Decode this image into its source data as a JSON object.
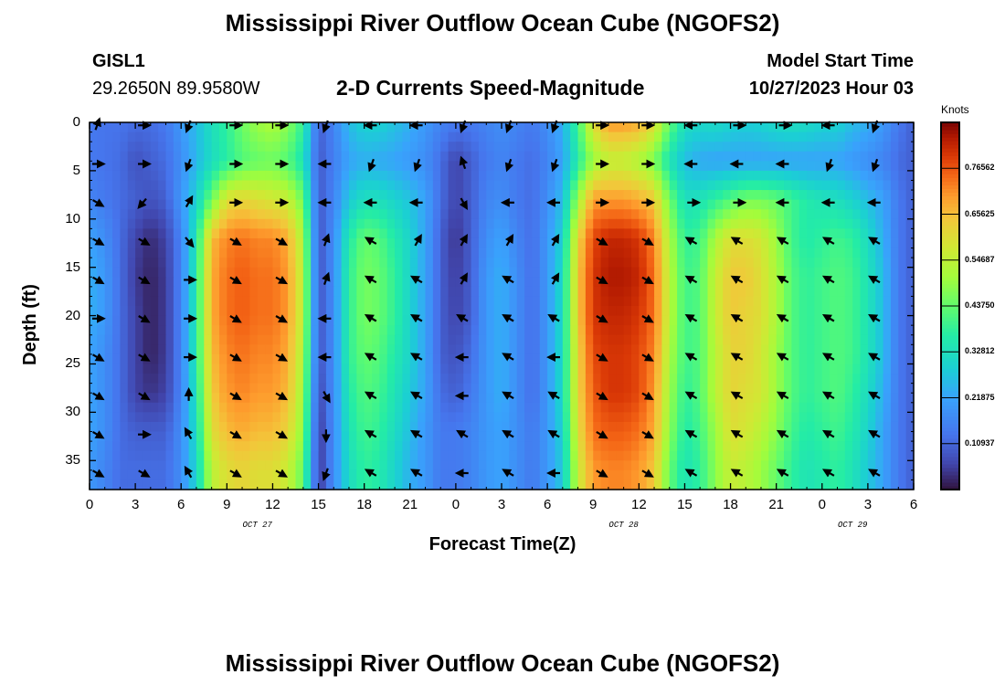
{
  "page": {
    "title_top": "Mississippi River Outflow Ocean Cube (NGOFS2)",
    "title_bottom": "Mississippi River Outflow Ocean Cube (NGOFS2)"
  },
  "header": {
    "station_id": "GISL1",
    "coordinates": "29.2650N  89.9580W",
    "plot_title": "2-D Currents Speed-Magnitude",
    "model_start_label": "Model Start Time",
    "model_start_value": "10/27/2023 Hour 03"
  },
  "chart_data": {
    "type": "heatmap",
    "title": "2-D Currents Speed-Magnitude",
    "xlabel": "Forecast Time(Z)",
    "ylabel": "Depth (ft)",
    "ylim": [
      0,
      38
    ],
    "y_ticks": [
      "0",
      "5",
      "10",
      "15",
      "20",
      "25",
      "30",
      "35"
    ],
    "y_tick_values": [
      0,
      5,
      10,
      15,
      20,
      25,
      30,
      35
    ],
    "x_ticks": [
      "0",
      "3",
      "6",
      "9",
      "12",
      "15",
      "18",
      "21",
      "0",
      "3",
      "6",
      "9",
      "12",
      "15",
      "18",
      "21",
      "0",
      "3",
      "6"
    ],
    "x_hours": [
      0,
      3,
      6,
      9,
      12,
      15,
      18,
      21,
      24,
      27,
      30,
      33,
      36,
      39,
      42,
      45,
      48,
      51,
      54
    ],
    "xlim": [
      0,
      54
    ],
    "date_labels": [
      {
        "label": "OCT 27",
        "hour": 11
      },
      {
        "label": "OCT 28",
        "hour": 35
      },
      {
        "label": "OCT 29",
        "hour": 50
      }
    ],
    "colorbar": {
      "units": "Knots",
      "ticks": [
        "0.10937",
        "0.21875",
        "0.32812",
        "0.43750",
        "0.54687",
        "0.65625",
        "0.76562"
      ],
      "tick_values": [
        0.10937,
        0.21875,
        0.32812,
        0.4375,
        0.54687,
        0.65625,
        0.76562
      ],
      "range": [
        0,
        0.875
      ]
    },
    "speed_grid": {
      "hours": [
        0,
        1,
        2,
        3,
        4,
        5,
        6,
        7,
        8,
        9,
        10,
        11,
        12,
        13,
        14,
        15,
        16,
        17,
        18,
        19,
        20,
        21,
        22,
        23,
        24,
        25,
        26,
        27,
        28,
        29,
        30,
        31,
        32,
        33,
        34,
        35,
        36,
        37,
        38,
        39,
        40,
        41,
        42,
        43,
        44,
        45,
        46,
        47,
        48,
        49,
        50,
        51,
        52,
        53,
        54
      ],
      "depths": [
        0,
        4,
        8,
        12,
        16,
        20,
        24,
        28,
        32,
        36
      ],
      "values": [
        [
          0.14,
          0.13,
          0.13,
          0.12,
          0.12,
          0.14,
          0.2,
          0.26,
          0.33,
          0.38,
          0.45,
          0.5,
          0.52,
          0.48,
          0.38,
          0.1,
          0.16,
          0.26,
          0.3,
          0.3,
          0.27,
          0.24,
          0.2,
          0.16,
          0.14,
          0.14,
          0.16,
          0.18,
          0.16,
          0.14,
          0.18,
          0.24,
          0.4,
          0.6,
          0.7,
          0.7,
          0.68,
          0.6,
          0.44,
          0.33,
          0.31,
          0.32,
          0.3,
          0.29,
          0.3,
          0.32,
          0.33,
          0.32,
          0.3,
          0.3,
          0.26,
          0.24,
          0.2,
          0.14,
          0.1
        ],
        [
          0.14,
          0.13,
          0.12,
          0.08,
          0.1,
          0.12,
          0.18,
          0.25,
          0.32,
          0.37,
          0.42,
          0.44,
          0.45,
          0.42,
          0.34,
          0.09,
          0.15,
          0.22,
          0.24,
          0.23,
          0.22,
          0.2,
          0.18,
          0.12,
          0.06,
          0.1,
          0.14,
          0.16,
          0.14,
          0.12,
          0.16,
          0.22,
          0.36,
          0.5,
          0.55,
          0.55,
          0.52,
          0.46,
          0.34,
          0.26,
          0.23,
          0.22,
          0.22,
          0.22,
          0.22,
          0.22,
          0.22,
          0.22,
          0.22,
          0.22,
          0.2,
          0.18,
          0.16,
          0.12,
          0.1
        ],
        [
          0.16,
          0.14,
          0.12,
          0.1,
          0.08,
          0.1,
          0.2,
          0.3,
          0.45,
          0.6,
          0.62,
          0.6,
          0.58,
          0.56,
          0.45,
          0.09,
          0.16,
          0.28,
          0.33,
          0.33,
          0.3,
          0.27,
          0.22,
          0.12,
          0.06,
          0.1,
          0.16,
          0.18,
          0.14,
          0.12,
          0.18,
          0.26,
          0.5,
          0.7,
          0.7,
          0.7,
          0.68,
          0.64,
          0.45,
          0.33,
          0.34,
          0.38,
          0.42,
          0.46,
          0.46,
          0.44,
          0.4,
          0.36,
          0.34,
          0.33,
          0.3,
          0.26,
          0.22,
          0.14,
          0.1
        ],
        [
          0.22,
          0.18,
          0.12,
          0.06,
          0.03,
          0.06,
          0.16,
          0.35,
          0.66,
          0.72,
          0.74,
          0.72,
          0.72,
          0.68,
          0.52,
          0.08,
          0.18,
          0.36,
          0.44,
          0.42,
          0.36,
          0.3,
          0.22,
          0.1,
          0.04,
          0.1,
          0.18,
          0.22,
          0.16,
          0.12,
          0.2,
          0.3,
          0.62,
          0.78,
          0.82,
          0.82,
          0.8,
          0.72,
          0.52,
          0.38,
          0.4,
          0.52,
          0.6,
          0.6,
          0.58,
          0.5,
          0.4,
          0.36,
          0.38,
          0.4,
          0.38,
          0.32,
          0.24,
          0.14,
          0.1
        ],
        [
          0.24,
          0.2,
          0.12,
          0.05,
          0.02,
          0.05,
          0.16,
          0.36,
          0.68,
          0.74,
          0.76,
          0.74,
          0.74,
          0.7,
          0.54,
          0.08,
          0.18,
          0.38,
          0.46,
          0.44,
          0.38,
          0.3,
          0.22,
          0.1,
          0.05,
          0.1,
          0.2,
          0.24,
          0.18,
          0.12,
          0.2,
          0.32,
          0.64,
          0.8,
          0.84,
          0.84,
          0.82,
          0.74,
          0.54,
          0.4,
          0.42,
          0.56,
          0.64,
          0.64,
          0.6,
          0.52,
          0.42,
          0.38,
          0.4,
          0.42,
          0.4,
          0.34,
          0.26,
          0.14,
          0.1
        ],
        [
          0.24,
          0.2,
          0.12,
          0.06,
          0.02,
          0.05,
          0.16,
          0.36,
          0.68,
          0.74,
          0.76,
          0.74,
          0.74,
          0.7,
          0.54,
          0.08,
          0.18,
          0.38,
          0.46,
          0.44,
          0.38,
          0.3,
          0.22,
          0.1,
          0.06,
          0.1,
          0.2,
          0.24,
          0.18,
          0.12,
          0.2,
          0.32,
          0.64,
          0.8,
          0.82,
          0.82,
          0.8,
          0.74,
          0.54,
          0.4,
          0.42,
          0.56,
          0.64,
          0.62,
          0.6,
          0.52,
          0.42,
          0.38,
          0.4,
          0.42,
          0.4,
          0.34,
          0.26,
          0.14,
          0.1
        ],
        [
          0.22,
          0.18,
          0.12,
          0.06,
          0.02,
          0.05,
          0.16,
          0.36,
          0.66,
          0.72,
          0.74,
          0.72,
          0.72,
          0.68,
          0.52,
          0.08,
          0.18,
          0.38,
          0.44,
          0.42,
          0.36,
          0.3,
          0.22,
          0.1,
          0.08,
          0.12,
          0.2,
          0.24,
          0.18,
          0.12,
          0.2,
          0.32,
          0.62,
          0.78,
          0.8,
          0.8,
          0.78,
          0.72,
          0.52,
          0.4,
          0.42,
          0.54,
          0.62,
          0.62,
          0.58,
          0.5,
          0.42,
          0.38,
          0.4,
          0.42,
          0.4,
          0.34,
          0.26,
          0.14,
          0.1
        ],
        [
          0.22,
          0.18,
          0.12,
          0.06,
          0.04,
          0.06,
          0.16,
          0.34,
          0.64,
          0.7,
          0.72,
          0.7,
          0.7,
          0.66,
          0.5,
          0.06,
          0.18,
          0.36,
          0.42,
          0.4,
          0.34,
          0.28,
          0.22,
          0.12,
          0.1,
          0.14,
          0.2,
          0.24,
          0.18,
          0.12,
          0.2,
          0.32,
          0.62,
          0.76,
          0.8,
          0.8,
          0.78,
          0.7,
          0.5,
          0.38,
          0.42,
          0.54,
          0.62,
          0.6,
          0.58,
          0.5,
          0.42,
          0.38,
          0.4,
          0.42,
          0.38,
          0.32,
          0.24,
          0.14,
          0.1
        ],
        [
          0.22,
          0.18,
          0.12,
          0.1,
          0.1,
          0.1,
          0.18,
          0.32,
          0.6,
          0.66,
          0.68,
          0.66,
          0.66,
          0.62,
          0.48,
          0.04,
          0.18,
          0.34,
          0.4,
          0.38,
          0.32,
          0.26,
          0.2,
          0.14,
          0.14,
          0.16,
          0.2,
          0.22,
          0.18,
          0.14,
          0.2,
          0.3,
          0.6,
          0.74,
          0.76,
          0.76,
          0.74,
          0.68,
          0.48,
          0.36,
          0.4,
          0.5,
          0.6,
          0.58,
          0.54,
          0.48,
          0.4,
          0.36,
          0.38,
          0.4,
          0.36,
          0.3,
          0.22,
          0.14,
          0.1
        ],
        [
          0.2,
          0.16,
          0.12,
          0.12,
          0.12,
          0.12,
          0.18,
          0.3,
          0.54,
          0.6,
          0.62,
          0.6,
          0.6,
          0.56,
          0.44,
          0.04,
          0.18,
          0.32,
          0.38,
          0.36,
          0.3,
          0.24,
          0.2,
          0.14,
          0.14,
          0.16,
          0.2,
          0.22,
          0.18,
          0.14,
          0.2,
          0.28,
          0.56,
          0.7,
          0.72,
          0.72,
          0.7,
          0.64,
          0.44,
          0.34,
          0.38,
          0.48,
          0.56,
          0.54,
          0.5,
          0.44,
          0.38,
          0.34,
          0.36,
          0.38,
          0.34,
          0.28,
          0.22,
          0.14,
          0.1
        ]
      ]
    },
    "arrow_grid": {
      "hours": [
        0,
        3,
        6,
        9,
        12,
        15,
        18,
        21,
        24,
        27,
        30,
        33,
        36,
        39,
        42,
        45,
        48,
        51
      ],
      "depths": [
        0,
        4,
        8,
        12,
        16,
        20,
        24,
        28,
        32,
        36
      ],
      "direction_deg": [
        [
          20,
          90,
          200,
          90,
          90,
          200,
          270,
          270,
          200,
          200,
          200,
          90,
          90,
          270,
          90,
          90,
          270,
          200
        ],
        [
          90,
          90,
          200,
          90,
          90,
          270,
          200,
          200,
          340,
          200,
          200,
          90,
          90,
          270,
          270,
          270,
          200,
          200
        ],
        [
          120,
          220,
          30,
          90,
          90,
          270,
          270,
          270,
          150,
          270,
          270,
          90,
          90,
          90,
          90,
          270,
          270,
          270
        ],
        [
          120,
          120,
          140,
          120,
          120,
          20,
          300,
          30,
          30,
          30,
          30,
          120,
          120,
          300,
          300,
          300,
          300,
          300
        ],
        [
          120,
          120,
          90,
          120,
          120,
          20,
          300,
          300,
          30,
          300,
          30,
          120,
          120,
          300,
          300,
          300,
          300,
          300
        ],
        [
          90,
          120,
          90,
          120,
          120,
          270,
          300,
          300,
          300,
          300,
          300,
          120,
          120,
          300,
          300,
          300,
          300,
          300
        ],
        [
          120,
          120,
          90,
          120,
          120,
          270,
          300,
          300,
          270,
          300,
          270,
          120,
          120,
          300,
          300,
          300,
          300,
          300
        ],
        [
          120,
          120,
          0,
          120,
          120,
          150,
          300,
          300,
          270,
          300,
          300,
          120,
          120,
          300,
          300,
          300,
          300,
          300
        ],
        [
          120,
          90,
          330,
          120,
          120,
          180,
          300,
          300,
          300,
          300,
          300,
          120,
          120,
          300,
          300,
          300,
          300,
          300
        ],
        [
          120,
          120,
          330,
          120,
          120,
          200,
          300,
          300,
          270,
          300,
          270,
          120,
          120,
          300,
          300,
          300,
          300,
          300
        ]
      ]
    }
  }
}
